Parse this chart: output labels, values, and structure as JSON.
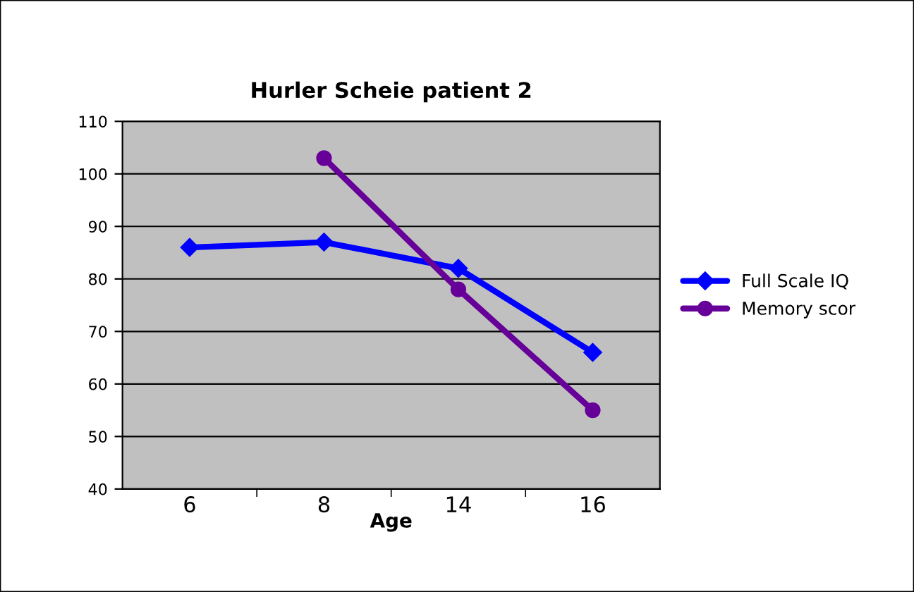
{
  "chart_data": {
    "type": "line",
    "title": "Hurler Scheie patient 2",
    "xlabel": "Age",
    "categories": [
      "6",
      "8",
      "14",
      "16"
    ],
    "series": [
      {
        "name": "Full Scale IQ",
        "color": "#0000ff",
        "marker": "diamond",
        "values": [
          86,
          87,
          82,
          66
        ]
      },
      {
        "name": "Memory scor",
        "color": "#660099",
        "marker": "circle",
        "values": [
          null,
          103,
          78,
          55
        ]
      }
    ],
    "ylim": [
      40,
      110
    ],
    "yticks": [
      40,
      50,
      60,
      70,
      80,
      90,
      100,
      110
    ],
    "grid": "y",
    "legend": "right",
    "line_style": "solid"
  }
}
